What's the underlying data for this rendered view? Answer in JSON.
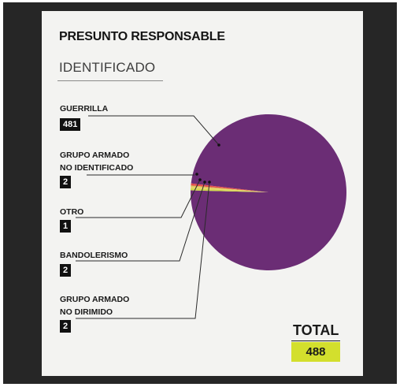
{
  "title": "PRESUNTO RESPONSABLE",
  "subtitle": "IDENTIFICADO",
  "chart_data": {
    "type": "pie",
    "categories": [
      {
        "label_lines": [
          "GUERRILLA"
        ],
        "value": 481,
        "color": "#6b2d75"
      },
      {
        "label_lines": [
          "GRUPO ARMADO",
          "NO IDENTIFICADO"
        ],
        "value": 2,
        "color": "#e34d4d"
      },
      {
        "label_lines": [
          "OTRO"
        ],
        "value": 1,
        "color": "#d4b24c"
      },
      {
        "label_lines": [
          "BANDOLERISMO"
        ],
        "value": 2,
        "color": "#e8d26a"
      },
      {
        "label_lines": [
          "GRUPO ARMADO",
          "NO DIRIMIDO"
        ],
        "value": 2,
        "color": "#cfd84a"
      }
    ],
    "values": [
      481,
      2,
      1,
      2,
      2
    ],
    "legend": "left"
  },
  "total": {
    "label": "TOTAL",
    "value": "488"
  },
  "labels": {
    "guerrilla": "GUERRILLA",
    "guerrilla_value": "481",
    "gani_1": "GRUPO ARMADO",
    "gani_2": "NO IDENTIFICADO",
    "gani_value": "2",
    "otro": "OTRO",
    "otro_value": "1",
    "bandolerismo": "BANDOLERISMO",
    "bandolerismo_value": "2",
    "gand_1": "GRUPO ARMADO",
    "gand_2": "NO DIRIMIDO",
    "gand_value": "2"
  }
}
